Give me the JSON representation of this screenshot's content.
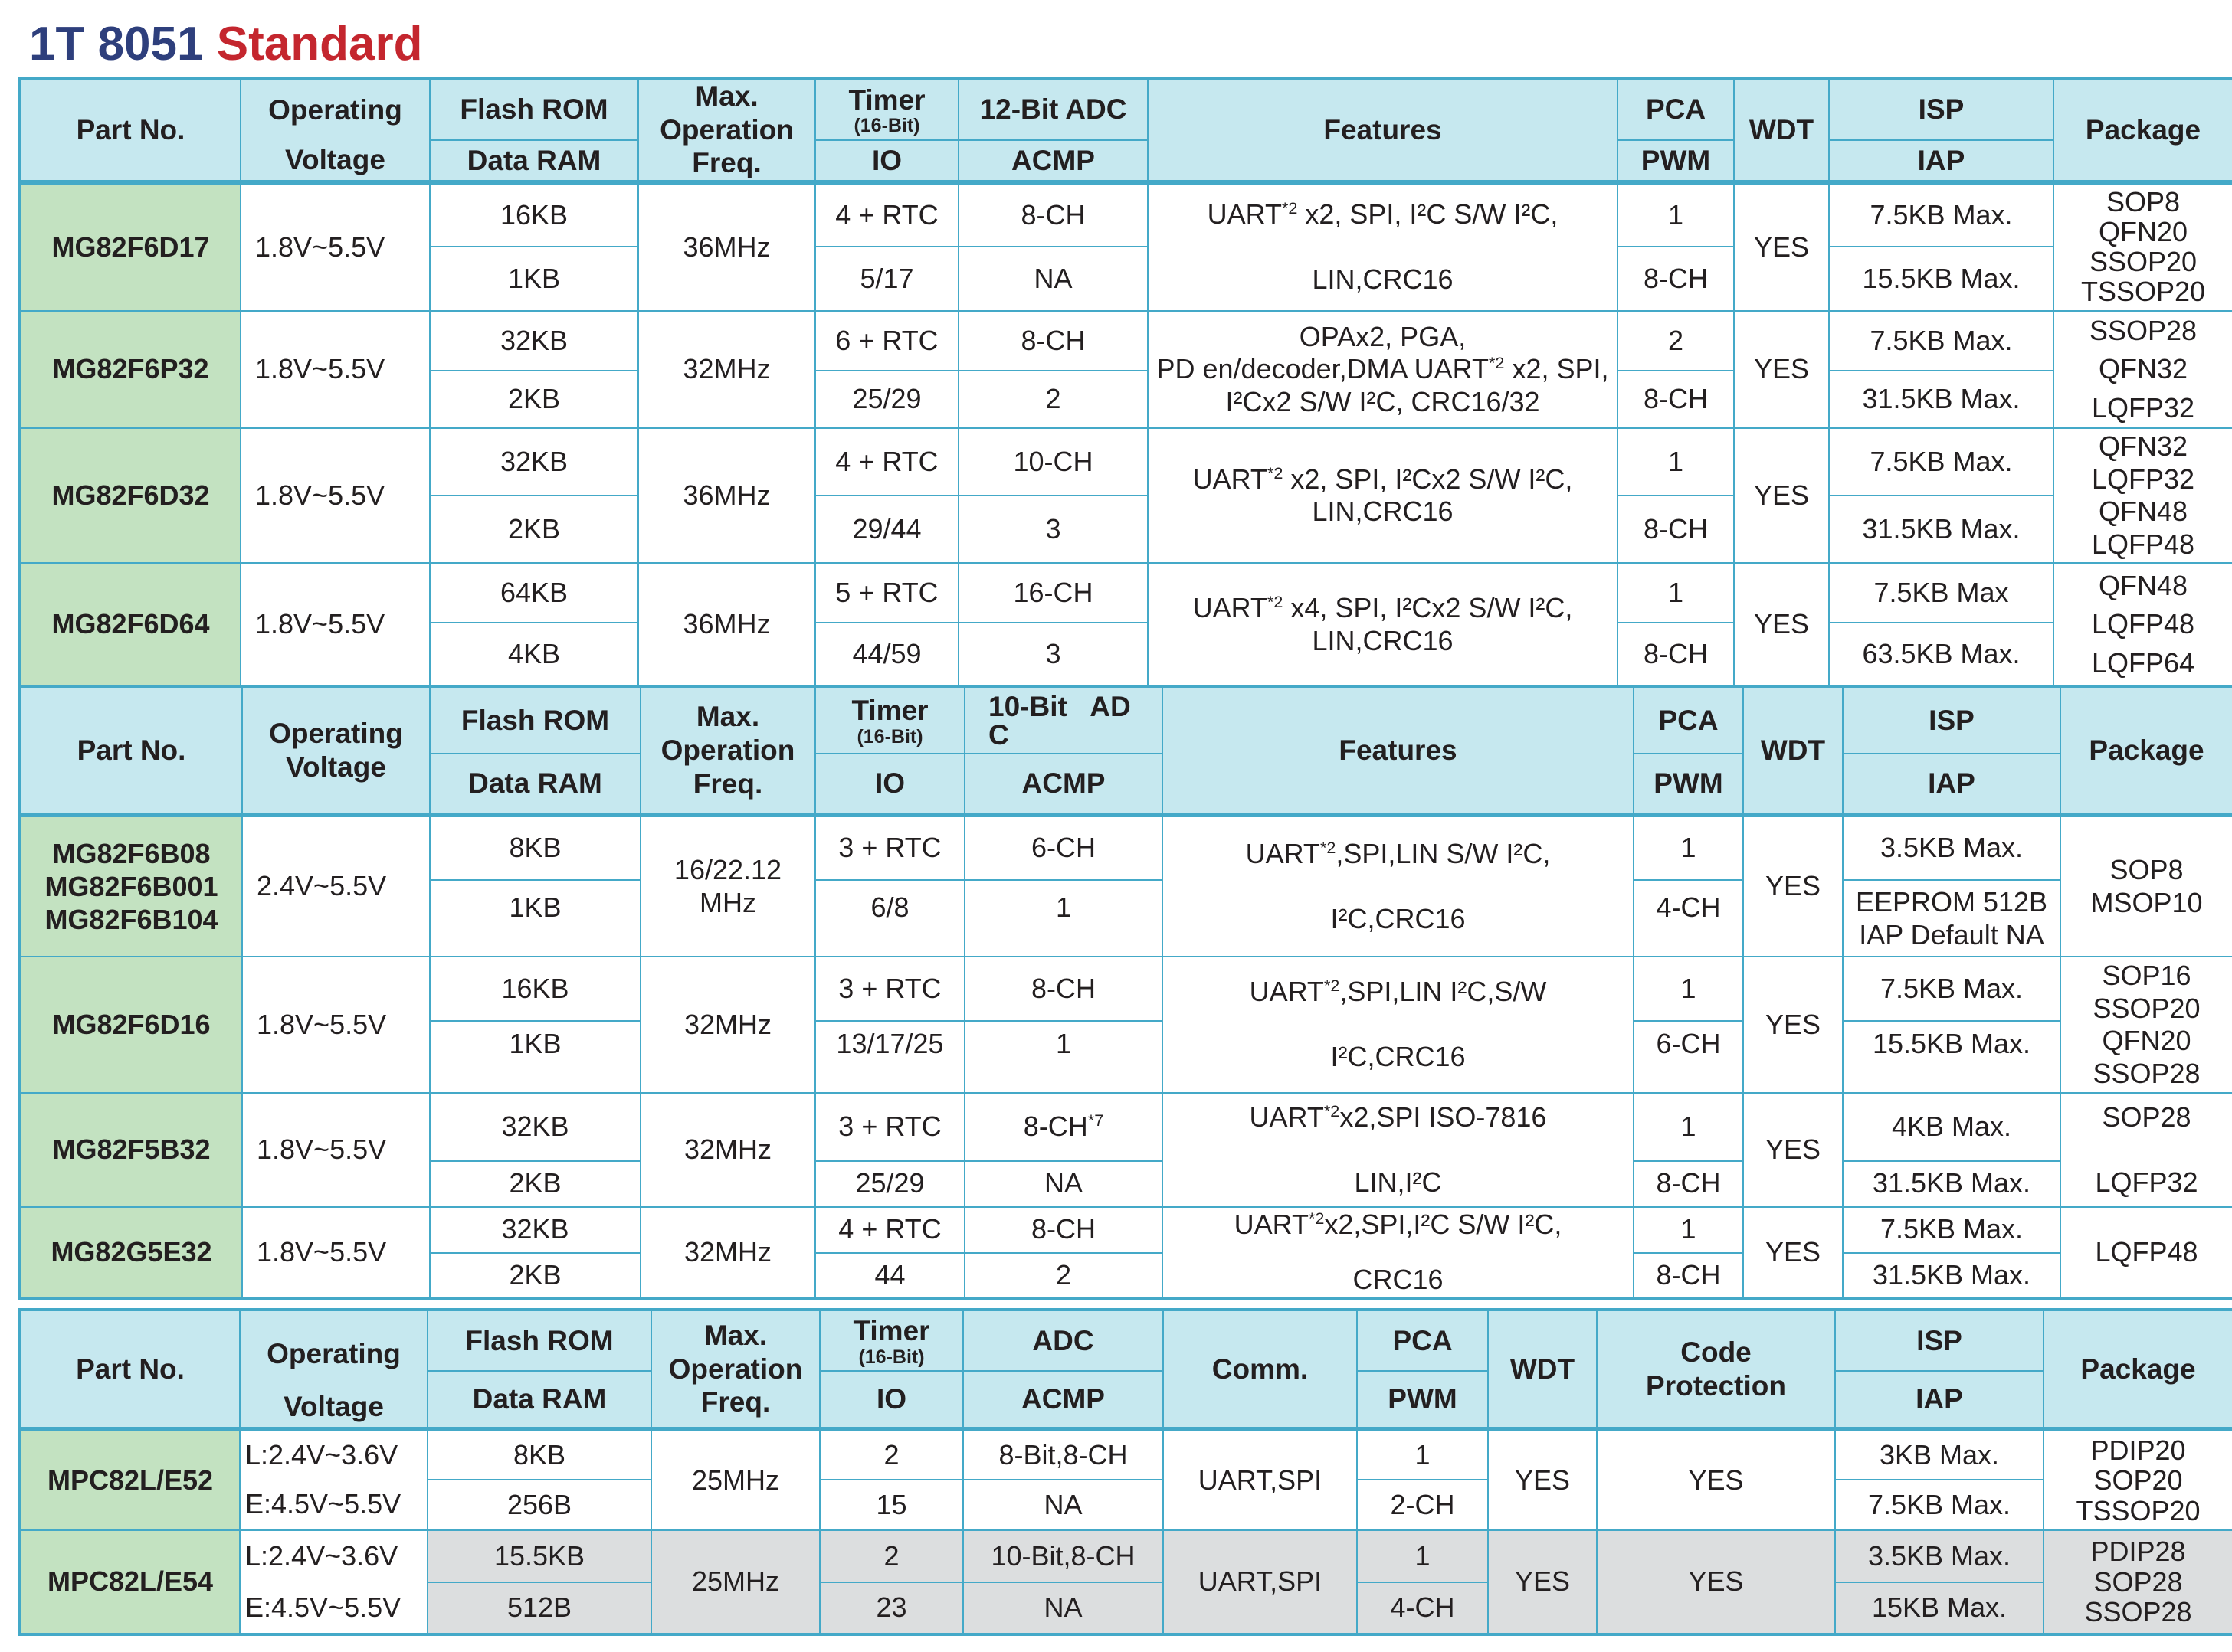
{
  "title": {
    "prefix": "1T 8051",
    "suffix": "Standard"
  },
  "tables": [
    {
      "headers": {
        "part_no": "Part No.",
        "voltage_top": "Operating",
        "voltage_bottom": "Voltage",
        "flash": "Flash ROM",
        "ram": "Data RAM",
        "freq": "Max.\nOperation\nFreq.",
        "timer": "Timer",
        "timer_sub": "(16-Bit)",
        "io": "IO",
        "adc": "12-Bit ADC",
        "acmp": "ACMP",
        "features": "Features",
        "pca": "PCA",
        "pwm": "PWM",
        "wdt": "WDT",
        "isp": "ISP",
        "iap": "IAP",
        "package": "Package"
      },
      "rows": [
        {
          "part": "MG82F6D17",
          "voltage": "1.8V~5.5V",
          "flash": "16KB",
          "ram": "1KB",
          "freq": "36MHz",
          "timer": "4 + RTC",
          "io": "5/17",
          "adc": "8-CH",
          "acmp": "NA",
          "features_1": "UART",
          "features_sup": "*2",
          "features_2": " x2, SPI, I²C S/W I²C,\n\nLIN,CRC16",
          "pca": "1",
          "pwm": "8-CH",
          "wdt": "YES",
          "isp": "7.5KB Max.",
          "iap": "15.5KB Max.",
          "package": "SOP8\nQFN20\nSSOP20\nTSSOP20"
        },
        {
          "part": "MG82F6P32",
          "voltage": "1.8V~5.5V",
          "flash": "32KB",
          "ram": "2KB",
          "freq": "32MHz",
          "timer": "6 + RTC",
          "io": "25/29",
          "adc": "8-CH",
          "acmp": "2",
          "features_1": "OPAx2, PGA,\nPD en/decoder,DMA UART",
          "features_sup": "*2",
          "features_2": " x2, SPI,\nI²Cx2 S/W I²C, CRC16/32",
          "pca": "2",
          "pwm": "8-CH",
          "wdt": "YES",
          "isp": "7.5KB Max.",
          "iap": "31.5KB Max.",
          "package": "SSOP28\nQFN32\nLQFP32"
        },
        {
          "part": "MG82F6D32",
          "voltage": "1.8V~5.5V",
          "flash": "32KB",
          "ram": "2KB",
          "freq": "36MHz",
          "timer": "4 + RTC",
          "io": "29/44",
          "adc": "10-CH",
          "acmp": "3",
          "features_1": "UART",
          "features_sup": "*2",
          "features_2": " x2, SPI, I²Cx2 S/W I²C,\nLIN,CRC16",
          "pca": "1",
          "pwm": "8-CH",
          "wdt": "YES",
          "isp": "7.5KB Max.",
          "iap": "31.5KB Max.",
          "package": "QFN32\nLQFP32\nQFN48\nLQFP48"
        },
        {
          "part": "MG82F6D64",
          "voltage": "1.8V~5.5V",
          "flash": "64KB",
          "ram": "4KB",
          "freq": "36MHz",
          "timer": "5 + RTC",
          "io": "44/59",
          "adc": "16-CH",
          "acmp": "3",
          "features_1": "UART",
          "features_sup": "*2",
          "features_2": " x4, SPI, I²Cx2 S/W I²C,\nLIN,CRC16",
          "pca": "1",
          "pwm": "8-CH",
          "wdt": "YES",
          "isp": "7.5KB Max",
          "iap": "63.5KB Max.",
          "package": "QFN48\nLQFP48\nLQFP64"
        }
      ]
    },
    {
      "headers": {
        "part_no": "Part No.",
        "voltage": "Operating\nVoltage",
        "flash": "Flash ROM",
        "ram": "Data RAM",
        "freq": "Max.\nOperation\nFreq.",
        "timer": "Timer",
        "timer_sub": "(16-Bit)",
        "io": "IO",
        "adc": "10-Bit   AD\nC",
        "acmp": "ACMP",
        "features": "Features",
        "pca": "PCA",
        "pwm": "PWM",
        "wdt": "WDT",
        "isp": "ISP",
        "iap": "IAP",
        "package": "Package"
      },
      "rows": [
        {
          "part": "MG82F6B08\nMG82F6B001\nMG82F6B104",
          "voltage": "2.4V~5.5V",
          "flash": "8KB",
          "ram": "1KB",
          "freq": "16/22.12\nMHz",
          "timer": "3 + RTC",
          "io": "6/8",
          "adc": "6-CH",
          "acmp": "1",
          "features_1": "UART",
          "features_sup": "*2",
          "features_2": ",SPI,LIN S/W I²C,\n\nI²C,CRC16",
          "pca": "1",
          "pwm": "4-CH",
          "wdt": "YES",
          "isp": "3.5KB Max.",
          "iap": "EEPROM 512B\nIAP Default NA",
          "package": "SOP8\nMSOP10"
        },
        {
          "part": "MG82F6D16",
          "voltage": "1.8V~5.5V",
          "flash": "16KB",
          "ram": "1KB",
          "freq": "32MHz",
          "timer": "3 + RTC",
          "io": "13/17/25",
          "adc": "8-CH",
          "acmp": "1",
          "features_1": "UART",
          "features_sup": "*2",
          "features_2": ",SPI,LIN I²C,S/W\n\nI²C,CRC16",
          "pca": "1",
          "pwm": "6-CH",
          "wdt": "YES",
          "isp": "7.5KB Max.",
          "iap": "15.5KB Max.",
          "package": "SOP16\nSSOP20\nQFN20\nSSOP28"
        },
        {
          "part": "MG82F5B32",
          "voltage": "1.8V~5.5V",
          "flash": "32KB",
          "ram": "2KB",
          "freq": "32MHz",
          "timer": "3 + RTC",
          "io": "25/29",
          "adc": "8-CH",
          "adc_sup": "*7",
          "acmp": "NA",
          "features_1": "UART",
          "features_sup": "*2",
          "features_2": "x2,SPI ISO-7816\n\nLIN,I²C",
          "pca": "1",
          "pwm": "8-CH",
          "wdt": "YES",
          "isp": "4KB Max.",
          "iap": "31.5KB Max.",
          "package": "SOP28\n\nLQFP32"
        },
        {
          "part": "MG82G5E32",
          "voltage": "1.8V~5.5V",
          "flash": "32KB",
          "ram": "2KB",
          "freq": "32MHz",
          "timer": "4 + RTC",
          "io": "44",
          "adc": "8-CH",
          "acmp": "2",
          "features_1": "UART",
          "features_sup": "*2",
          "features_2": "x2,SPI,I²C S/W I²C,\n\nCRC16",
          "pca": "1",
          "pwm": "8-CH",
          "wdt": "YES",
          "isp": "7.5KB Max.",
          "iap": "31.5KB Max.",
          "package": "LQFP48"
        }
      ]
    },
    {
      "headers": {
        "part_no": "Part No.",
        "voltage_top": "Operating",
        "voltage_bottom": "Voltage",
        "flash": "Flash ROM",
        "ram": "Data RAM",
        "freq": "Max.\nOperation\nFreq.",
        "timer": "Timer",
        "timer_sub": "(16-Bit)",
        "io": "IO",
        "adc": "ADC",
        "acmp": "ACMP",
        "comm": "Comm.",
        "pca": "PCA",
        "pwm": "PWM",
        "wdt": "WDT",
        "code_protection": "Code\nProtection",
        "isp": "ISP",
        "iap": "IAP",
        "package": "Package"
      },
      "rows": [
        {
          "part": "MPC82L/E52",
          "voltage_l": "L:2.4V~3.6V",
          "voltage_e": "E:4.5V~5.5V",
          "flash": "8KB",
          "ram": "256B",
          "freq": "25MHz",
          "timer": "2",
          "io": "15",
          "adc": "8-Bit,8-CH",
          "acmp": "NA",
          "comm": "UART,SPI",
          "pca": "1",
          "pwm": "2-CH",
          "wdt": "YES",
          "code_protection": "YES",
          "isp": "3KB Max.",
          "iap": "7.5KB Max.",
          "package": "PDIP20\nSOP20\nTSSOP20"
        },
        {
          "part": "MPC82L/E54",
          "voltage_l": "L:2.4V~3.6V",
          "voltage_e": "E:4.5V~5.5V",
          "flash": "15.5KB",
          "ram": "512B",
          "freq": "25MHz",
          "timer": "2",
          "io": "23",
          "adc": "10-Bit,8-CH",
          "acmp": "NA",
          "comm": "UART,SPI",
          "pca": "1",
          "pwm": "4-CH",
          "wdt": "YES",
          "code_protection": "YES",
          "isp": "3.5KB Max.",
          "iap": "15KB Max.",
          "package": "PDIP28\nSOP28\nSSOP28"
        }
      ]
    }
  ]
}
